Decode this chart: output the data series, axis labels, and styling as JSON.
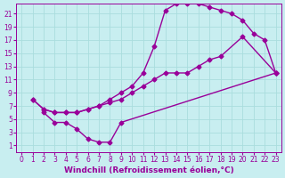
{
  "xlabel": "Windchill (Refroidissement éolien,°C)",
  "bg_color": "#c8eef0",
  "line_color": "#990099",
  "grid_color": "#aadddd",
  "xlim": [
    -0.5,
    23.5
  ],
  "ylim": [
    0,
    22.5
  ],
  "xticks": [
    0,
    1,
    2,
    3,
    4,
    5,
    6,
    7,
    8,
    9,
    10,
    11,
    12,
    13,
    14,
    15,
    16,
    17,
    18,
    19,
    20,
    21,
    22,
    23
  ],
  "yticks": [
    1,
    3,
    5,
    7,
    9,
    11,
    13,
    15,
    17,
    19,
    21
  ],
  "curve1_x": [
    1,
    2,
    3,
    4,
    5,
    6,
    7,
    8,
    9,
    10,
    11,
    12,
    13,
    14,
    15,
    16,
    17,
    18,
    20,
    23
  ],
  "curve1_y": [
    8,
    6.5,
    6,
    6,
    6,
    6.5,
    7,
    7.5,
    8,
    9,
    10,
    11,
    12,
    12,
    12,
    13,
    14,
    14.5,
    17.5,
    12
  ],
  "curve2_x": [
    1,
    2,
    3,
    4,
    5,
    6,
    7,
    8,
    9,
    10,
    11,
    12,
    13,
    14,
    15,
    16,
    17,
    18,
    19,
    20,
    21,
    22,
    23
  ],
  "curve2_y": [
    8,
    6.5,
    6,
    6,
    6,
    6.5,
    7,
    8,
    9,
    10,
    12,
    16,
    21.5,
    22.5,
    22.5,
    22.5,
    22,
    21.5,
    21,
    20,
    18,
    17,
    12
  ],
  "curve3_x": [
    2,
    3,
    4,
    5,
    6,
    7,
    8,
    9,
    23
  ],
  "curve3_y": [
    6,
    4.5,
    4.5,
    3.5,
    2,
    1.5,
    1.5,
    4.5,
    12
  ],
  "marker": "D",
  "marker_size": 2.5,
  "linewidth": 1.0,
  "tick_fontsize": 5.5,
  "label_fontsize": 6.5
}
